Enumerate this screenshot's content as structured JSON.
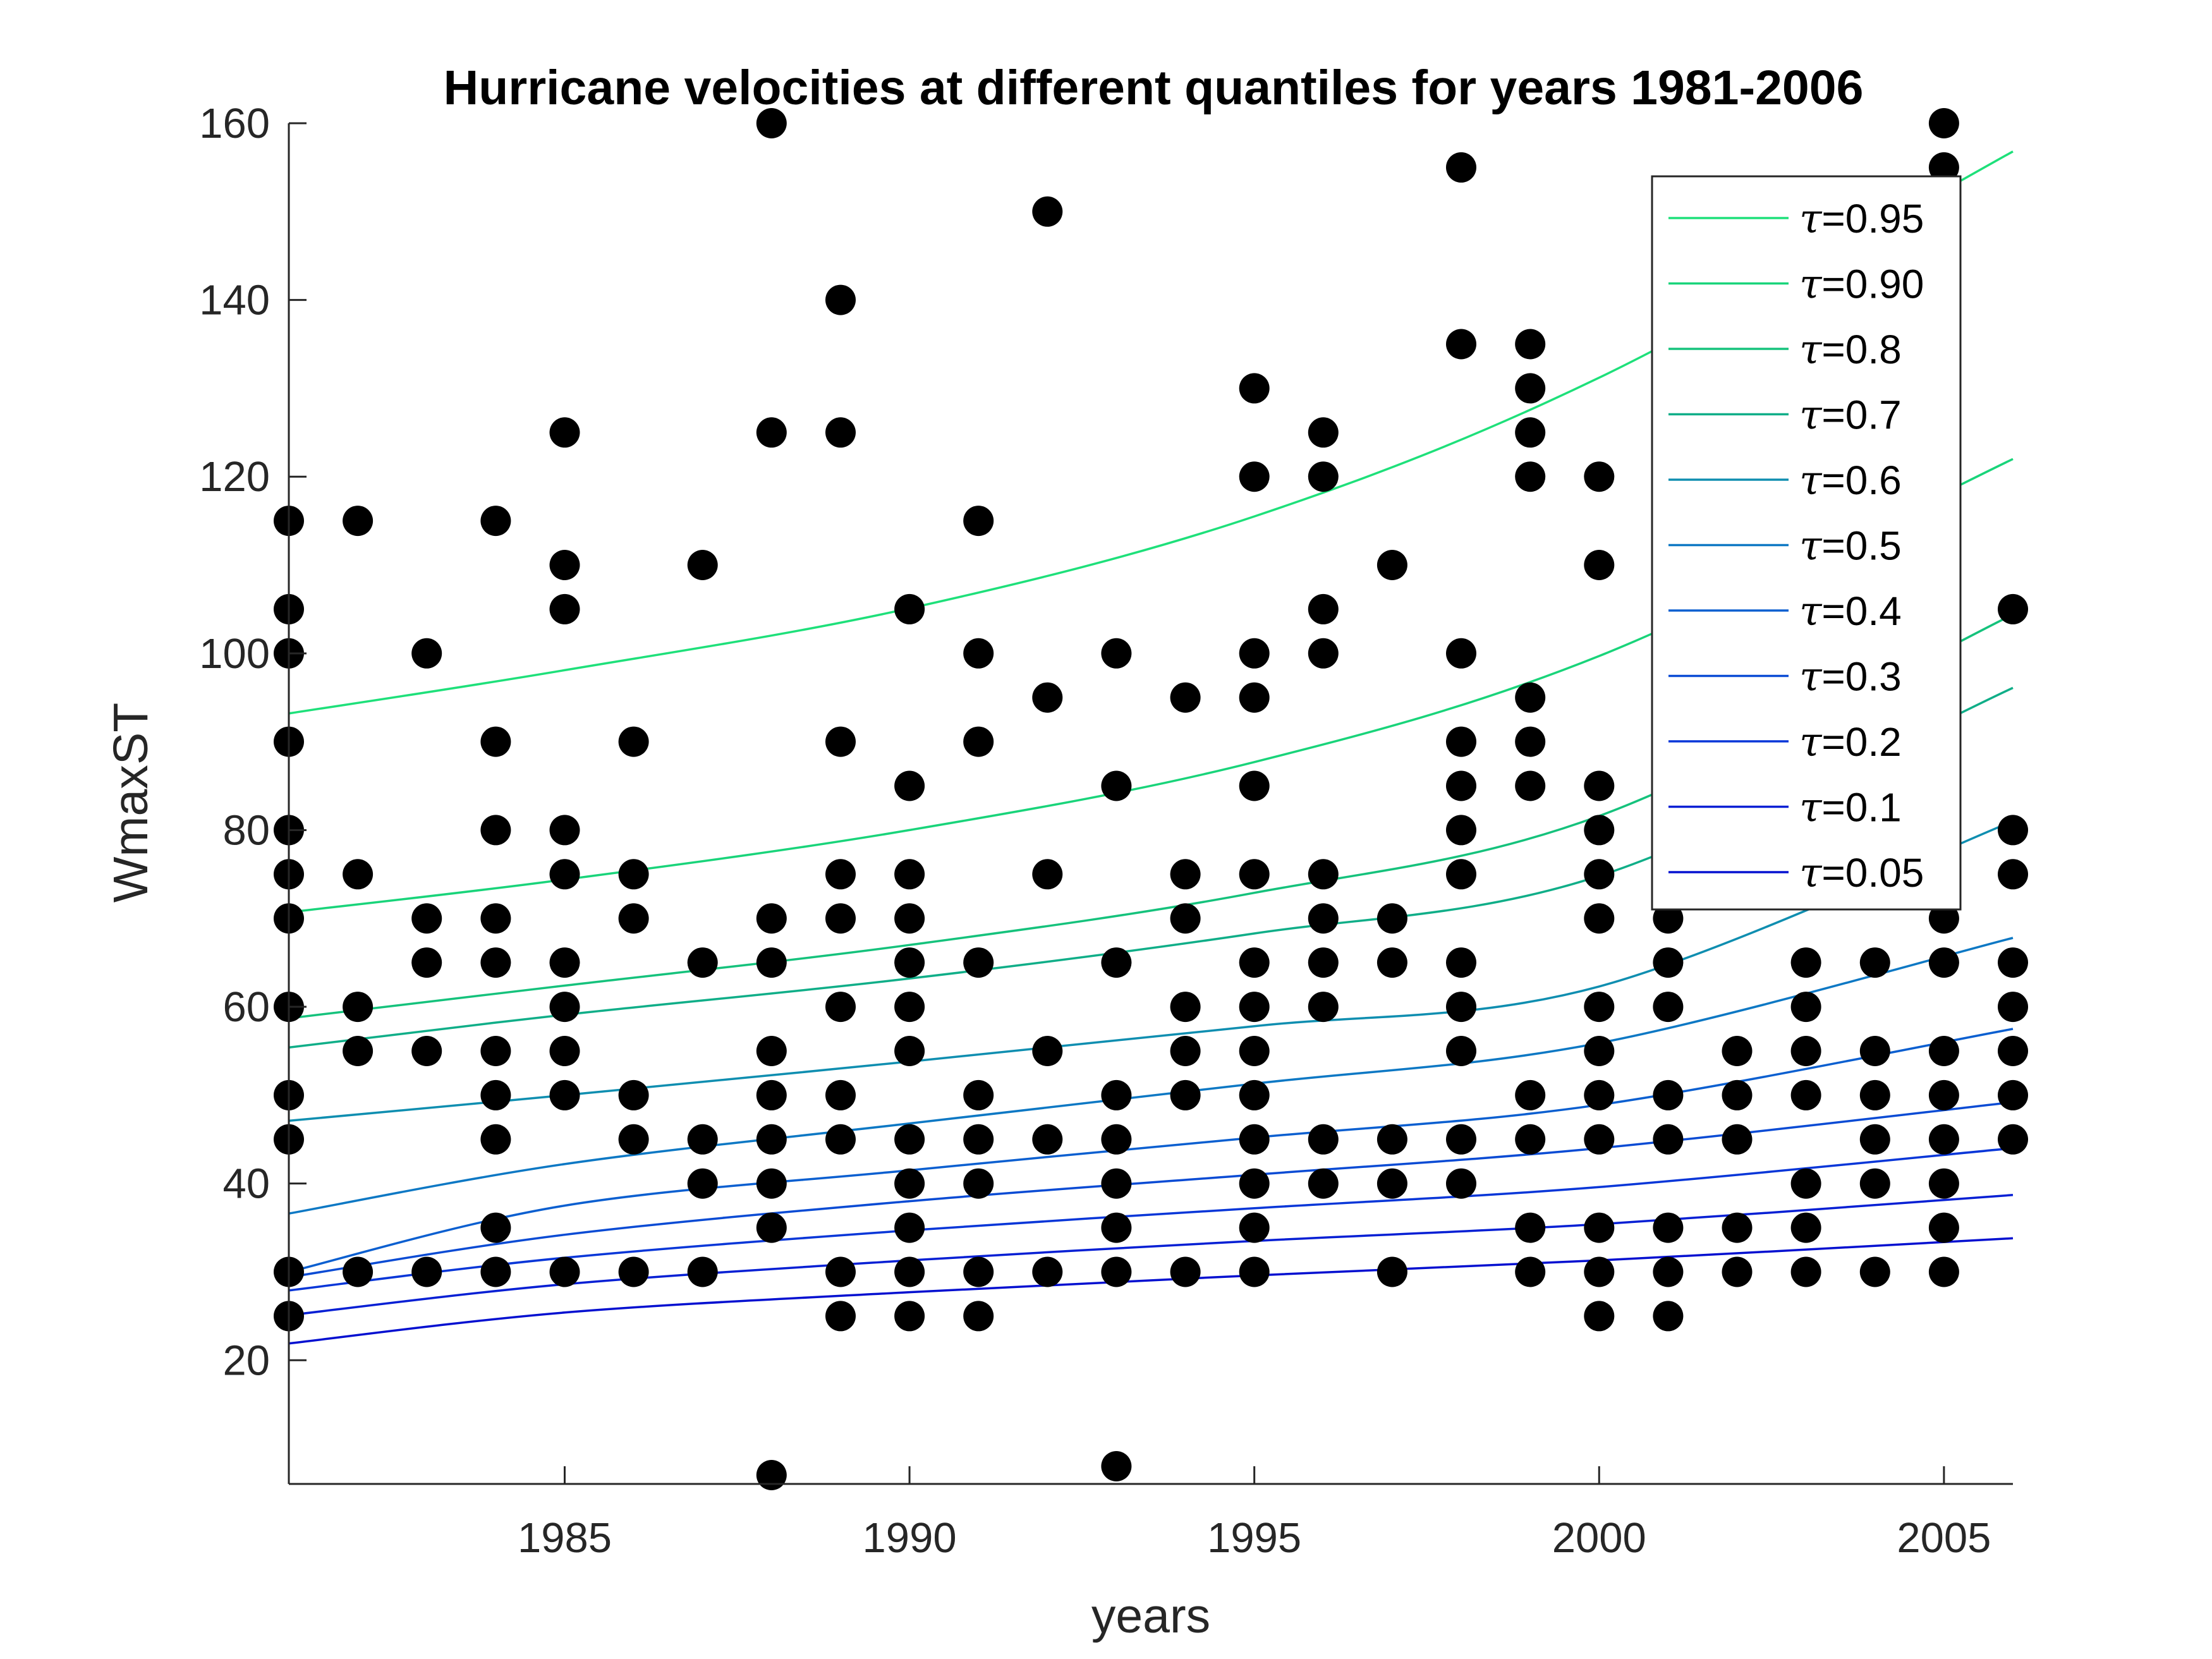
{
  "chart_data": {
    "type": "scatter",
    "title": "Hurricane velocities at different quantiles for years 1981-2006",
    "xlabel": "years",
    "ylabel": "WmaxST",
    "xlim": [
      1981,
      2006
    ],
    "ylim": [
      6,
      160
    ],
    "xticks": [
      1985,
      1990,
      1995,
      2000,
      2005
    ],
    "yticks": [
      20,
      40,
      60,
      80,
      100,
      120,
      140,
      160
    ],
    "legend_position": "top-right",
    "scatter": {
      "name": "observations",
      "color": "#000000",
      "points": [
        [
          1981,
          25
        ],
        [
          1981,
          30
        ],
        [
          1981,
          45
        ],
        [
          1981,
          50
        ],
        [
          1981,
          60
        ],
        [
          1981,
          70
        ],
        [
          1981,
          75
        ],
        [
          1981,
          80
        ],
        [
          1981,
          90
        ],
        [
          1981,
          100
        ],
        [
          1981,
          105
        ],
        [
          1981,
          115
        ],
        [
          1982,
          30
        ],
        [
          1982,
          55
        ],
        [
          1982,
          60
        ],
        [
          1982,
          75
        ],
        [
          1982,
          115
        ],
        [
          1983,
          30
        ],
        [
          1983,
          55
        ],
        [
          1983,
          65
        ],
        [
          1983,
          70
        ],
        [
          1983,
          100
        ],
        [
          1984,
          30
        ],
        [
          1984,
          35
        ],
        [
          1984,
          45
        ],
        [
          1984,
          50
        ],
        [
          1984,
          55
        ],
        [
          1984,
          65
        ],
        [
          1984,
          70
        ],
        [
          1984,
          80
        ],
        [
          1984,
          90
        ],
        [
          1984,
          115
        ],
        [
          1985,
          30
        ],
        [
          1985,
          50
        ],
        [
          1985,
          55
        ],
        [
          1985,
          60
        ],
        [
          1985,
          65
        ],
        [
          1985,
          75
        ],
        [
          1985,
          80
        ],
        [
          1985,
          105
        ],
        [
          1985,
          110
        ],
        [
          1985,
          125
        ],
        [
          1986,
          30
        ],
        [
          1986,
          45
        ],
        [
          1986,
          50
        ],
        [
          1986,
          70
        ],
        [
          1986,
          75
        ],
        [
          1986,
          90
        ],
        [
          1987,
          30
        ],
        [
          1987,
          40
        ],
        [
          1987,
          45
        ],
        [
          1987,
          65
        ],
        [
          1987,
          110
        ],
        [
          1988,
          7
        ],
        [
          1988,
          35
        ],
        [
          1988,
          40
        ],
        [
          1988,
          45
        ],
        [
          1988,
          50
        ],
        [
          1988,
          55
        ],
        [
          1988,
          65
        ],
        [
          1988,
          70
        ],
        [
          1988,
          125
        ],
        [
          1988,
          160
        ],
        [
          1989,
          25
        ],
        [
          1989,
          30
        ],
        [
          1989,
          45
        ],
        [
          1989,
          50
        ],
        [
          1989,
          60
        ],
        [
          1989,
          70
        ],
        [
          1989,
          75
        ],
        [
          1989,
          90
        ],
        [
          1989,
          125
        ],
        [
          1989,
          140
        ],
        [
          1990,
          25
        ],
        [
          1990,
          30
        ],
        [
          1990,
          35
        ],
        [
          1990,
          40
        ],
        [
          1990,
          45
        ],
        [
          1990,
          55
        ],
        [
          1990,
          60
        ],
        [
          1990,
          65
        ],
        [
          1990,
          70
        ],
        [
          1990,
          75
        ],
        [
          1990,
          85
        ],
        [
          1990,
          105
        ],
        [
          1991,
          25
        ],
        [
          1991,
          30
        ],
        [
          1991,
          40
        ],
        [
          1991,
          45
        ],
        [
          1991,
          50
        ],
        [
          1991,
          65
        ],
        [
          1991,
          90
        ],
        [
          1991,
          100
        ],
        [
          1991,
          115
        ],
        [
          1992,
          30
        ],
        [
          1992,
          45
        ],
        [
          1992,
          55
        ],
        [
          1992,
          75
        ],
        [
          1992,
          95
        ],
        [
          1992,
          150
        ],
        [
          1993,
          8
        ],
        [
          1993,
          30
        ],
        [
          1993,
          35
        ],
        [
          1993,
          40
        ],
        [
          1993,
          45
        ],
        [
          1993,
          50
        ],
        [
          1993,
          65
        ],
        [
          1993,
          85
        ],
        [
          1993,
          100
        ],
        [
          1994,
          30
        ],
        [
          1994,
          50
        ],
        [
          1994,
          55
        ],
        [
          1994,
          60
        ],
        [
          1994,
          70
        ],
        [
          1994,
          75
        ],
        [
          1994,
          95
        ],
        [
          1995,
          30
        ],
        [
          1995,
          35
        ],
        [
          1995,
          40
        ],
        [
          1995,
          45
        ],
        [
          1995,
          50
        ],
        [
          1995,
          55
        ],
        [
          1995,
          60
        ],
        [
          1995,
          65
        ],
        [
          1995,
          75
        ],
        [
          1995,
          85
        ],
        [
          1995,
          95
        ],
        [
          1995,
          100
        ],
        [
          1995,
          120
        ],
        [
          1995,
          130
        ],
        [
          1996,
          40
        ],
        [
          1996,
          45
        ],
        [
          1996,
          60
        ],
        [
          1996,
          65
        ],
        [
          1996,
          70
        ],
        [
          1996,
          75
        ],
        [
          1996,
          100
        ],
        [
          1996,
          105
        ],
        [
          1996,
          120
        ],
        [
          1996,
          125
        ],
        [
          1997,
          30
        ],
        [
          1997,
          40
        ],
        [
          1997,
          45
        ],
        [
          1997,
          65
        ],
        [
          1997,
          70
        ],
        [
          1997,
          110
        ],
        [
          1998,
          40
        ],
        [
          1998,
          45
        ],
        [
          1998,
          55
        ],
        [
          1998,
          60
        ],
        [
          1998,
          65
        ],
        [
          1998,
          75
        ],
        [
          1998,
          80
        ],
        [
          1998,
          85
        ],
        [
          1998,
          90
        ],
        [
          1998,
          100
        ],
        [
          1998,
          135
        ],
        [
          1998,
          155
        ],
        [
          1999,
          30
        ],
        [
          1999,
          35
        ],
        [
          1999,
          45
        ],
        [
          1999,
          50
        ],
        [
          1999,
          85
        ],
        [
          1999,
          90
        ],
        [
          1999,
          95
        ],
        [
          1999,
          120
        ],
        [
          1999,
          125
        ],
        [
          1999,
          130
        ],
        [
          1999,
          135
        ],
        [
          2000,
          25
        ],
        [
          2000,
          30
        ],
        [
          2000,
          35
        ],
        [
          2000,
          45
        ],
        [
          2000,
          50
        ],
        [
          2000,
          55
        ],
        [
          2000,
          60
        ],
        [
          2000,
          70
        ],
        [
          2000,
          75
        ],
        [
          2000,
          80
        ],
        [
          2000,
          85
        ],
        [
          2000,
          110
        ],
        [
          2000,
          120
        ],
        [
          2001,
          25
        ],
        [
          2001,
          30
        ],
        [
          2001,
          35
        ],
        [
          2001,
          45
        ],
        [
          2001,
          50
        ],
        [
          2001,
          60
        ],
        [
          2001,
          65
        ],
        [
          2001,
          70
        ],
        [
          2002,
          30
        ],
        [
          2002,
          35
        ],
        [
          2002,
          45
        ],
        [
          2002,
          50
        ],
        [
          2002,
          55
        ],
        [
          2003,
          30
        ],
        [
          2003,
          35
        ],
        [
          2003,
          40
        ],
        [
          2003,
          50
        ],
        [
          2003,
          55
        ],
        [
          2003,
          60
        ],
        [
          2003,
          65
        ],
        [
          2004,
          30
        ],
        [
          2004,
          40
        ],
        [
          2004,
          45
        ],
        [
          2004,
          50
        ],
        [
          2004,
          55
        ],
        [
          2004,
          65
        ],
        [
          2005,
          30
        ],
        [
          2005,
          35
        ],
        [
          2005,
          40
        ],
        [
          2005,
          45
        ],
        [
          2005,
          50
        ],
        [
          2005,
          55
        ],
        [
          2005,
          65
        ],
        [
          2005,
          70
        ],
        [
          2005,
          155
        ],
        [
          2005,
          160
        ],
        [
          2006,
          45
        ],
        [
          2006,
          50
        ],
        [
          2006,
          55
        ],
        [
          2006,
          60
        ],
        [
          2006,
          65
        ],
        [
          2006,
          75
        ],
        [
          2006,
          80
        ],
        [
          2006,
          105
        ]
      ]
    },
    "x": [
      1981,
      1985,
      1990,
      1995,
      2000,
      2006
    ],
    "series": [
      {
        "name": "τ=0.95",
        "label_value": "=0.95",
        "color": "#1ee07a",
        "values": [
          93.2,
          98.1,
          105.1,
          115.5,
          131.2,
          156.8
        ]
      },
      {
        "name": "τ=0.90",
        "label_value": "=0.90",
        "color": "#19d47a",
        "values": [
          70.7,
          74.4,
          80.0,
          87.7,
          99.7,
          122.0
        ]
      },
      {
        "name": "τ=0.8",
        "label_value": "=0.8",
        "color": "#15c27c",
        "values": [
          58.7,
          62.4,
          67.0,
          72.9,
          81.6,
          104.4
        ]
      },
      {
        "name": "τ=0.7",
        "label_value": "=0.7",
        "color": "#10ae88",
        "values": [
          55.4,
          59.1,
          63.2,
          68.3,
          74.8,
          96.1
        ]
      },
      {
        "name": "τ=0.6",
        "label_value": "=0.6",
        "color": "#0f8eb0",
        "values": [
          47.1,
          50.0,
          53.8,
          57.8,
          62.3,
          81.0
        ]
      },
      {
        "name": "τ=0.5",
        "label_value": "=0.5",
        "color": "#0d78c4",
        "values": [
          36.6,
          42.2,
          46.8,
          51.3,
          55.9,
          67.8
        ]
      },
      {
        "name": "τ=0.4",
        "label_value": "=0.4",
        "color": "#0b5fd0",
        "values": [
          30.0,
          37.5,
          41.5,
          45.2,
          48.9,
          57.5
        ]
      },
      {
        "name": "τ=0.3",
        "label_value": "=0.3",
        "color": "#0a4bd4",
        "values": [
          29.4,
          34.2,
          38.0,
          41.0,
          44.0,
          49.2
        ]
      },
      {
        "name": "τ=0.2",
        "label_value": "=0.2",
        "color": "#0836d8",
        "values": [
          27.9,
          31.6,
          34.7,
          37.2,
          39.6,
          44.0
        ]
      },
      {
        "name": "τ=0.1",
        "label_value": "=0.1",
        "color": "#061fd4",
        "values": [
          25.1,
          28.6,
          31.3,
          33.5,
          35.4,
          38.7
        ]
      },
      {
        "name": "τ=0.05",
        "label_value": "=0.05",
        "color": "#0410d0",
        "values": [
          21.9,
          25.4,
          27.7,
          29.6,
          31.3,
          33.8
        ]
      }
    ]
  }
}
